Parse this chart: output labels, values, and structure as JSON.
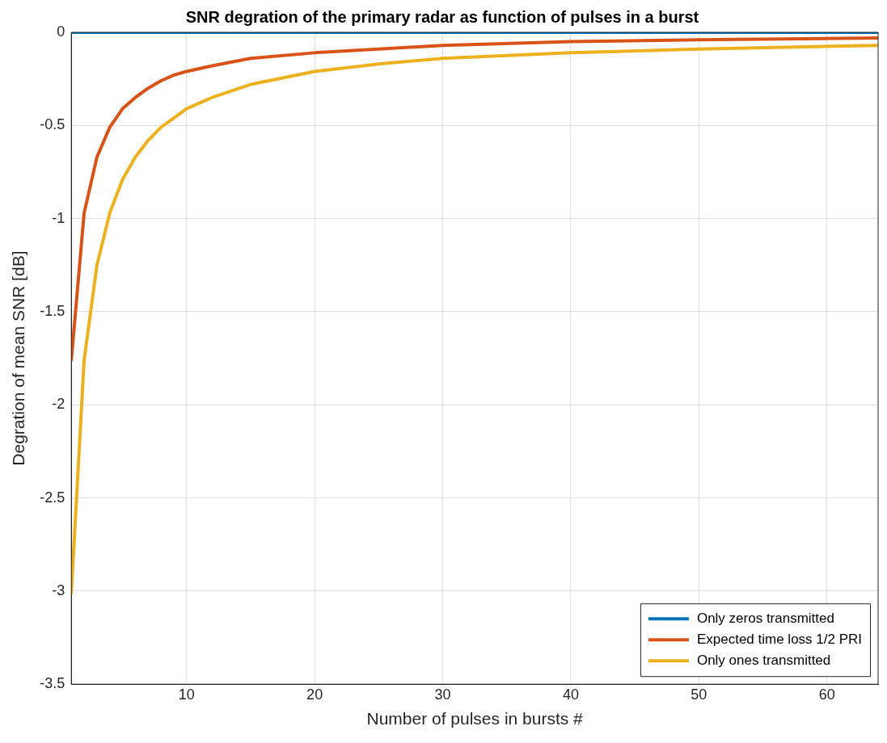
{
  "chart_data": {
    "type": "line",
    "title": "SNR degration of the primary radar as function of pulses in a burst",
    "xlabel": "Number of pulses in bursts #",
    "ylabel": "Degration of mean SNR [dB]",
    "xlim": [
      1,
      64
    ],
    "xticks": [
      10,
      20,
      30,
      40,
      50,
      60
    ],
    "ylim": [
      -3.5,
      0
    ],
    "yticks": [
      -3.5,
      -3,
      -2.5,
      -2,
      -1.5,
      -1,
      -0.5,
      0
    ],
    "grid": true,
    "legend": "bottom right",
    "marker": "none",
    "line_style": "solid",
    "series": [
      {
        "name": "Only zeros transmitted",
        "color": "#0072bd",
        "x": [
          1,
          64
        ],
        "values": [
          0,
          0
        ]
      },
      {
        "name": "Expected time loss 1/2 PRI",
        "color": "#d95319",
        "x": [
          1,
          2,
          3,
          4,
          5,
          6,
          7,
          8,
          9,
          10,
          12,
          15,
          20,
          25,
          30,
          40,
          50,
          64
        ],
        "values": [
          -1.76,
          -0.97,
          -0.67,
          -0.51,
          -0.41,
          -0.35,
          -0.3,
          -0.26,
          -0.23,
          -0.21,
          -0.18,
          -0.14,
          -0.11,
          -0.09,
          -0.07,
          -0.05,
          -0.04,
          -0.03
        ]
      },
      {
        "name": "Only ones transmitted",
        "color": "#edb120",
        "x": [
          1,
          2,
          3,
          4,
          5,
          6,
          7,
          8,
          9,
          10,
          12,
          15,
          20,
          25,
          30,
          40,
          50,
          64
        ],
        "values": [
          -3.01,
          -1.76,
          -1.25,
          -0.97,
          -0.79,
          -0.67,
          -0.58,
          -0.51,
          -0.46,
          -0.41,
          -0.35,
          -0.28,
          -0.21,
          -0.17,
          -0.14,
          -0.11,
          -0.09,
          -0.07
        ]
      }
    ]
  }
}
